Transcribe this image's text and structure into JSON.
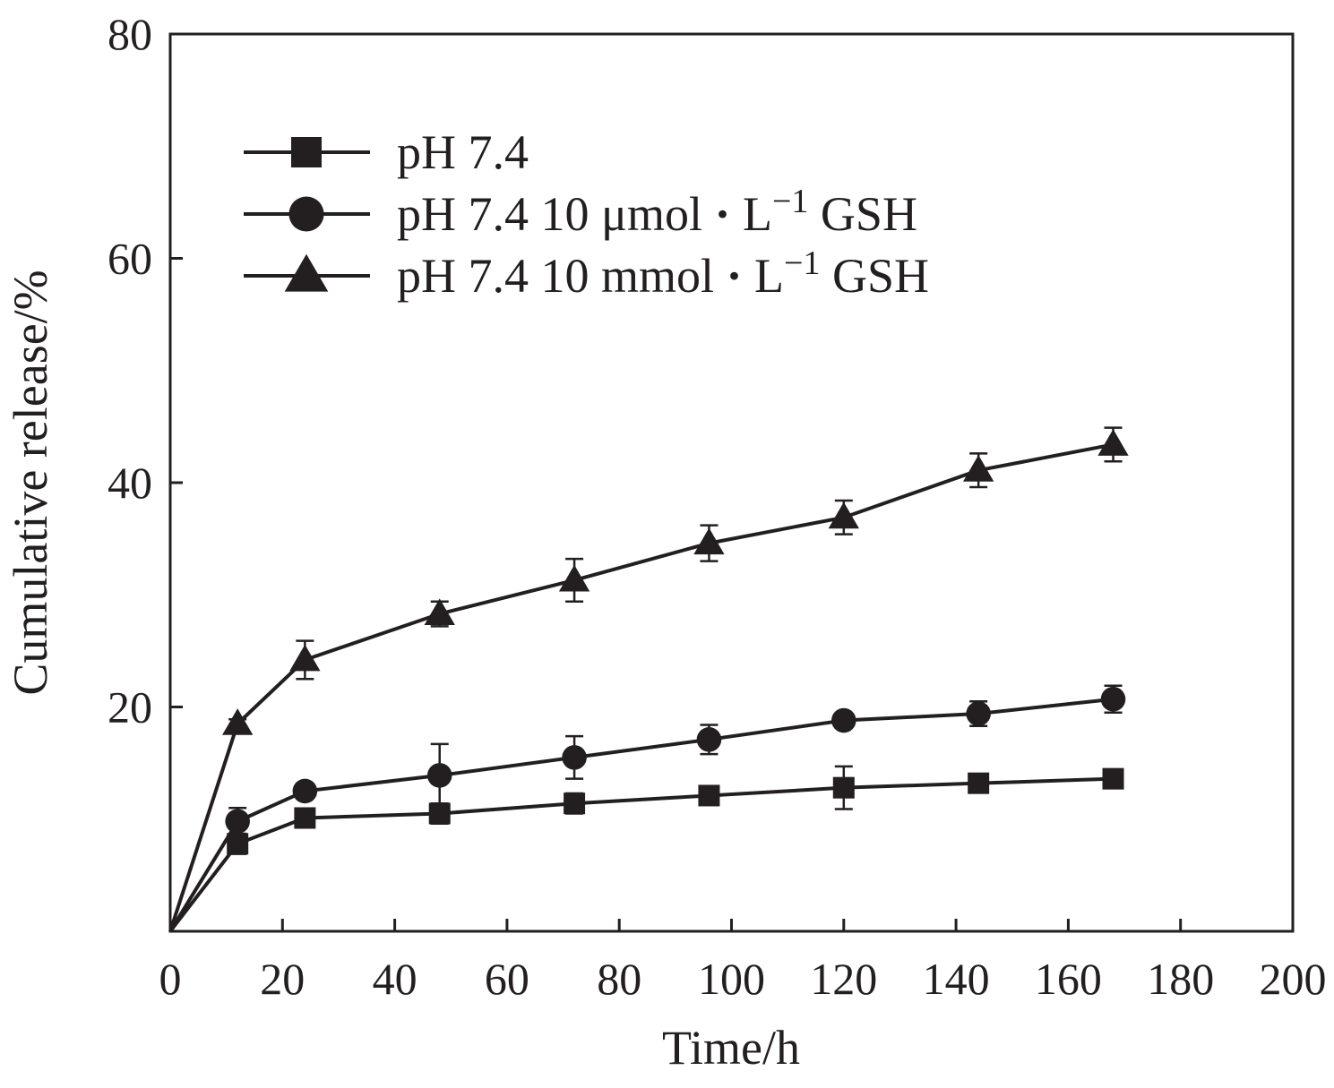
{
  "chart_data": {
    "type": "line",
    "title": "",
    "xlabel": "Time/h",
    "ylabel": "Cumulative release/%",
    "xlim": [
      0,
      200
    ],
    "ylim": [
      0,
      80
    ],
    "xticks": [
      0,
      20,
      40,
      60,
      80,
      100,
      120,
      140,
      160,
      180,
      200
    ],
    "yticks": [
      20,
      40,
      60,
      80
    ],
    "ytick_labels_extra": [],
    "grid": false,
    "legend_position": "top-left",
    "x": [
      0,
      12,
      24,
      48,
      72,
      96,
      120,
      144,
      168
    ],
    "series": [
      {
        "name": "pH 7.4",
        "name_parts": [
          "pH 7.4",
          "",
          "",
          ""
        ],
        "marker": "square",
        "values": [
          0,
          7.8,
          10.1,
          10.5,
          11.4,
          12.1,
          12.8,
          13.2,
          13.6
        ],
        "errors": [
          0,
          0.9,
          0.8,
          0.9,
          0.9,
          0.8,
          1.9,
          0.8,
          0.4
        ]
      },
      {
        "name": "pH 7.4 10 μmol·L−1 GSH",
        "name_parts": [
          "pH 7.4 10 μmol",
          "·",
          "L",
          "−1",
          " GSH"
        ],
        "marker": "circle",
        "values": [
          0,
          9.8,
          12.5,
          13.9,
          15.5,
          17.1,
          18.8,
          19.4,
          20.7
        ],
        "errors": [
          0,
          1.2,
          0.3,
          2.8,
          1.9,
          1.3,
          0.3,
          1.1,
          1.2
        ]
      },
      {
        "name": "pH 7.4 10 mmol·L−1 GSH",
        "name_parts": [
          "pH 7.4 10 mmol",
          "·",
          "L",
          "−1",
          " GSH"
        ],
        "marker": "triangle",
        "values": [
          0,
          18.5,
          24.2,
          28.3,
          31.3,
          34.6,
          36.9,
          41.1,
          43.4
        ],
        "errors": [
          0,
          0.4,
          1.7,
          1.1,
          1.9,
          1.6,
          1.5,
          1.5,
          1.5
        ]
      }
    ],
    "color": "#231f20"
  }
}
